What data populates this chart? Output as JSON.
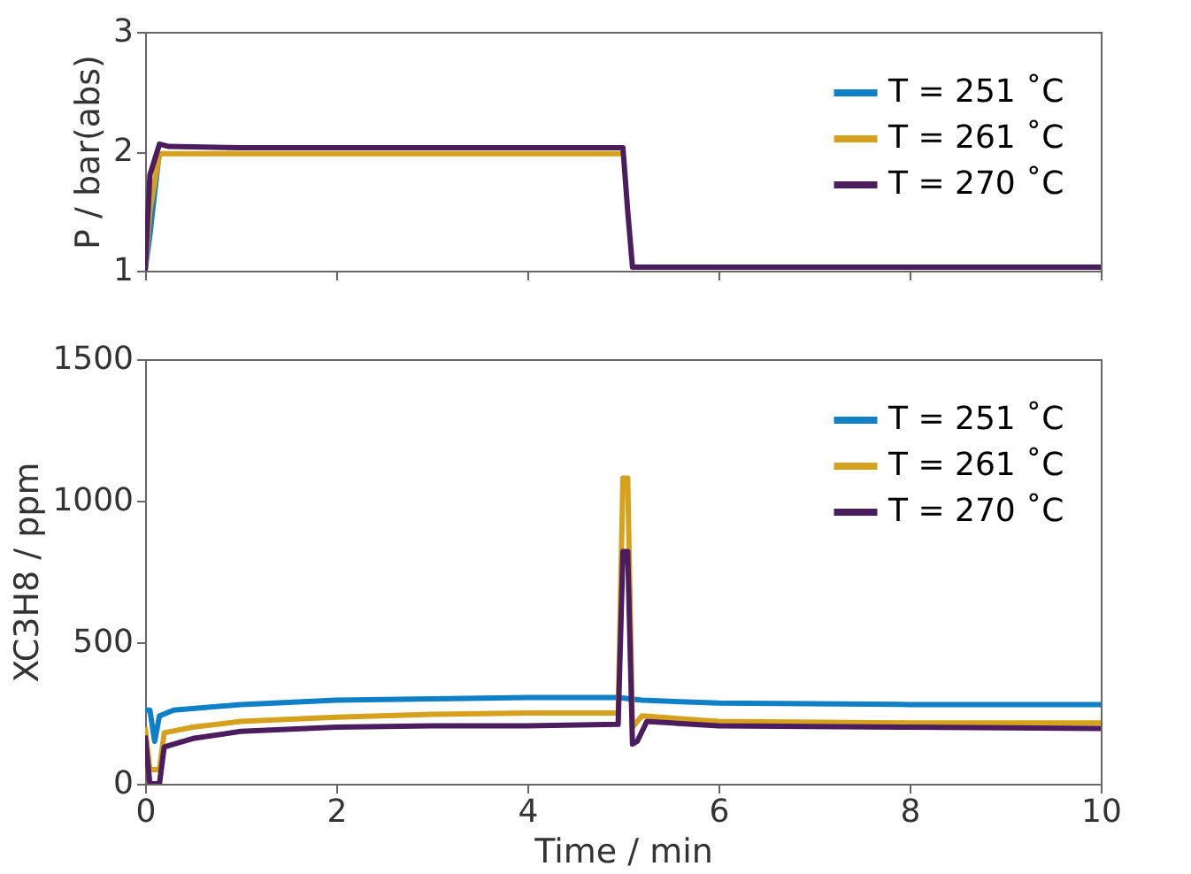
{
  "chart_data": [
    {
      "type": "line",
      "ylabel": "P / bar(abs)",
      "xlim": [
        0,
        10
      ],
      "xticks": [
        0,
        2,
        4,
        6,
        8,
        10
      ],
      "ylim": [
        1,
        3
      ],
      "yticks": [
        1,
        2,
        3
      ],
      "tick_labels": "y",
      "legend": "top right",
      "series": [
        {
          "name": "T = 251 ˚C",
          "color": "#0f7fc6",
          "x": [
            0,
            0.05,
            0.15
          ],
          "values": [
            1,
            1.3,
            2.0
          ]
        },
        {
          "name": "T = 261 ˚C",
          "color": "#d6a21e",
          "x": [
            0,
            0.05,
            0.15,
            0.25,
            1,
            2,
            3,
            4,
            5
          ],
          "values": [
            1,
            1.5,
            1.98,
            1.98,
            1.98,
            1.98,
            1.98,
            1.98,
            1.98
          ]
        },
        {
          "name": "T = 270 ˚C",
          "color": "#4b1c5e",
          "x": [
            0,
            0.05,
            0.15,
            0.25,
            1,
            2,
            3,
            4,
            5,
            5.05,
            5.1,
            6,
            8,
            10
          ],
          "values": [
            1,
            1.8,
            2.06,
            2.04,
            2.03,
            2.03,
            2.03,
            2.03,
            2.03,
            1.5,
            1.03,
            1.03,
            1.03,
            1.03
          ]
        }
      ]
    },
    {
      "type": "line",
      "xlabel": "Time / min",
      "ylabel": "XC3H8 / ppm",
      "xlim": [
        0,
        10
      ],
      "xticks": [
        0,
        2,
        4,
        6,
        8,
        10
      ],
      "ylim": [
        0,
        1500
      ],
      "yticks": [
        0,
        500,
        1000,
        1500
      ],
      "legend": "top right",
      "series": [
        {
          "name": "T = 251 ˚C",
          "color": "#0f7fc6",
          "x": [
            0,
            0.05,
            0.1,
            0.15,
            0.3,
            1,
            2,
            3,
            4,
            4.95,
            5.2,
            6,
            8,
            10
          ],
          "values": [
            260,
            260,
            150,
            240,
            260,
            280,
            295,
            300,
            305,
            305,
            295,
            285,
            280,
            280
          ]
        },
        {
          "name": "T = 261 ˚C",
          "color": "#d6a21e",
          "x": [
            0,
            0.05,
            0.15,
            0.2,
            0.5,
            1,
            2,
            3,
            4,
            4.95,
            5.0,
            5.05,
            5.1,
            5.2,
            6,
            8,
            10
          ],
          "values": [
            200,
            50,
            50,
            180,
            200,
            220,
            235,
            245,
            250,
            250,
            1080,
            1080,
            200,
            240,
            220,
            215,
            215
          ]
        },
        {
          "name": "T = 270 ˚C",
          "color": "#4b1c5e",
          "x": [
            0,
            0.05,
            0.15,
            0.2,
            0.5,
            1,
            2,
            3,
            4,
            4.95,
            5.0,
            5.05,
            5.1,
            5.15,
            5.25,
            6,
            8,
            10
          ],
          "values": [
            170,
            0,
            0,
            130,
            160,
            185,
            200,
            205,
            205,
            210,
            820,
            820,
            140,
            150,
            220,
            205,
            200,
            195
          ]
        }
      ]
    }
  ]
}
